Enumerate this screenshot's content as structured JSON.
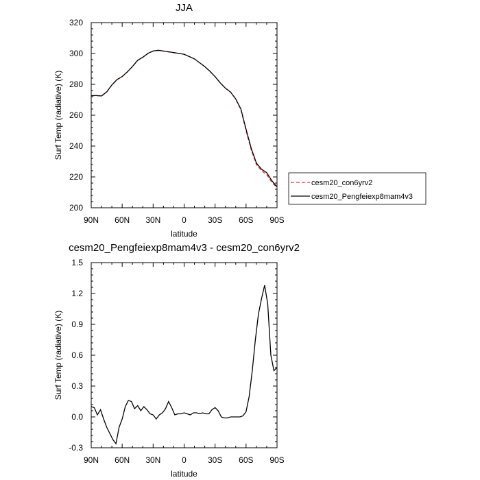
{
  "chart_data": [
    {
      "type": "line",
      "title": "JJA",
      "xlabel": "latitude",
      "ylabel": "Surf Temp (radiative) (K)",
      "x_ticks": [
        {
          "value": 90,
          "label": "90N"
        },
        {
          "value": 60,
          "label": "60N"
        },
        {
          "value": 30,
          "label": "30N"
        },
        {
          "value": 0,
          "label": "0"
        },
        {
          "value": -30,
          "label": "30S"
        },
        {
          "value": -60,
          "label": "60S"
        },
        {
          "value": -90,
          "label": "90S"
        }
      ],
      "xlim": [
        90,
        -90
      ],
      "ylim": [
        200,
        320
      ],
      "y_ticks": [
        {
          "value": 200,
          "label": "200"
        },
        {
          "value": 220,
          "label": "220"
        },
        {
          "value": 240,
          "label": "240"
        },
        {
          "value": 260,
          "label": "260"
        },
        {
          "value": 280,
          "label": "280"
        },
        {
          "value": 300,
          "label": "300"
        },
        {
          "value": 320,
          "label": "320"
        }
      ],
      "legend_position": "right",
      "x": [
        90,
        85,
        80,
        75,
        70,
        65,
        60,
        55,
        50,
        45,
        40,
        35,
        30,
        25,
        20,
        15,
        10,
        5,
        0,
        -5,
        -10,
        -15,
        -20,
        -25,
        -30,
        -35,
        -40,
        -45,
        -50,
        -55,
        -60,
        -65,
        -70,
        -75,
        -80,
        -85,
        -90
      ],
      "series": [
        {
          "name": "cesm20_con6yrv2",
          "color": "#e03030",
          "dash": "dashed",
          "values": [
            272.6,
            272.6,
            272.6,
            275.0,
            279.5,
            283.0,
            285.0,
            288.0,
            291.5,
            295.5,
            297.5,
            300.0,
            301.5,
            302.0,
            301.5,
            301.0,
            300.5,
            300.0,
            299.5,
            298.0,
            296.5,
            294.0,
            291.5,
            288.5,
            285.0,
            281.0,
            277.5,
            275.0,
            270.5,
            263.5,
            250.0,
            237.5,
            228.0,
            224.0,
            221.5,
            216.5,
            213.0
          ]
        },
        {
          "name": "cesm20_Pengfeiexp8mam4v3",
          "color": "#000000",
          "dash": "solid",
          "values": [
            272.7,
            272.7,
            272.5,
            275.1,
            279.6,
            283.1,
            285.1,
            288.1,
            291.6,
            295.6,
            297.6,
            300.1,
            301.6,
            302.1,
            301.6,
            301.1,
            300.6,
            300.0,
            299.5,
            298.0,
            296.5,
            294.0,
            291.5,
            288.5,
            285.0,
            281.0,
            277.5,
            275.0,
            270.5,
            264.0,
            251.0,
            238.5,
            229.0,
            225.0,
            222.8,
            217.5,
            213.5
          ]
        }
      ]
    },
    {
      "type": "line",
      "title": "cesm20_Pengfeiexp8mam4v3 - cesm20_con6yrv2",
      "xlabel": "latitude",
      "ylabel": "Surf Temp (radiative) (K)",
      "x_ticks": [
        {
          "value": 90,
          "label": "90N"
        },
        {
          "value": 60,
          "label": "60N"
        },
        {
          "value": 30,
          "label": "30N"
        },
        {
          "value": 0,
          "label": "0"
        },
        {
          "value": -30,
          "label": "30S"
        },
        {
          "value": -60,
          "label": "60S"
        },
        {
          "value": -90,
          "label": "90S"
        }
      ],
      "xlim": [
        90,
        -90
      ],
      "ylim": [
        -0.3,
        1.5
      ],
      "y_ticks": [
        {
          "value": -0.3,
          "label": "-0.3"
        },
        {
          "value": 0.0,
          "label": "0.0"
        },
        {
          "value": 0.3,
          "label": "0.3"
        },
        {
          "value": 0.6,
          "label": "0.6"
        },
        {
          "value": 0.9,
          "label": "0.9"
        },
        {
          "value": 1.2,
          "label": "1.2"
        },
        {
          "value": 1.5,
          "label": "1.5"
        }
      ],
      "x": [
        90,
        87,
        84,
        81,
        78,
        75,
        72,
        69,
        66,
        63,
        60,
        57,
        54,
        51,
        48,
        45,
        42,
        39,
        36,
        33,
        30,
        27,
        24,
        21,
        18,
        15,
        12,
        9,
        6,
        3,
        0,
        -3,
        -6,
        -9,
        -12,
        -15,
        -18,
        -21,
        -24,
        -27,
        -30,
        -33,
        -36,
        -39,
        -42,
        -45,
        -48,
        -51,
        -54,
        -57,
        -60,
        -63,
        -66,
        -69,
        -72,
        -75,
        -78,
        -81,
        -84,
        -87,
        -90
      ],
      "series": [
        {
          "name": "",
          "color": "#000000",
          "dash": "solid",
          "values": [
            0.1,
            0.09,
            0.02,
            0.07,
            -0.02,
            -0.1,
            -0.16,
            -0.22,
            -0.26,
            -0.1,
            -0.02,
            0.1,
            0.16,
            0.15,
            0.08,
            0.11,
            0.06,
            0.1,
            0.07,
            0.03,
            0.02,
            -0.02,
            0.02,
            0.04,
            0.08,
            0.15,
            0.09,
            0.02,
            0.03,
            0.03,
            0.04,
            0.03,
            0.02,
            0.04,
            0.04,
            0.03,
            0.04,
            0.03,
            0.03,
            0.07,
            0.09,
            0.06,
            0.0,
            -0.01,
            -0.01,
            0.0,
            0.0,
            0.0,
            0.0,
            0.01,
            0.05,
            0.2,
            0.45,
            0.75,
            1.0,
            1.15,
            1.28,
            1.1,
            0.6,
            0.45,
            0.48
          ]
        }
      ]
    }
  ]
}
